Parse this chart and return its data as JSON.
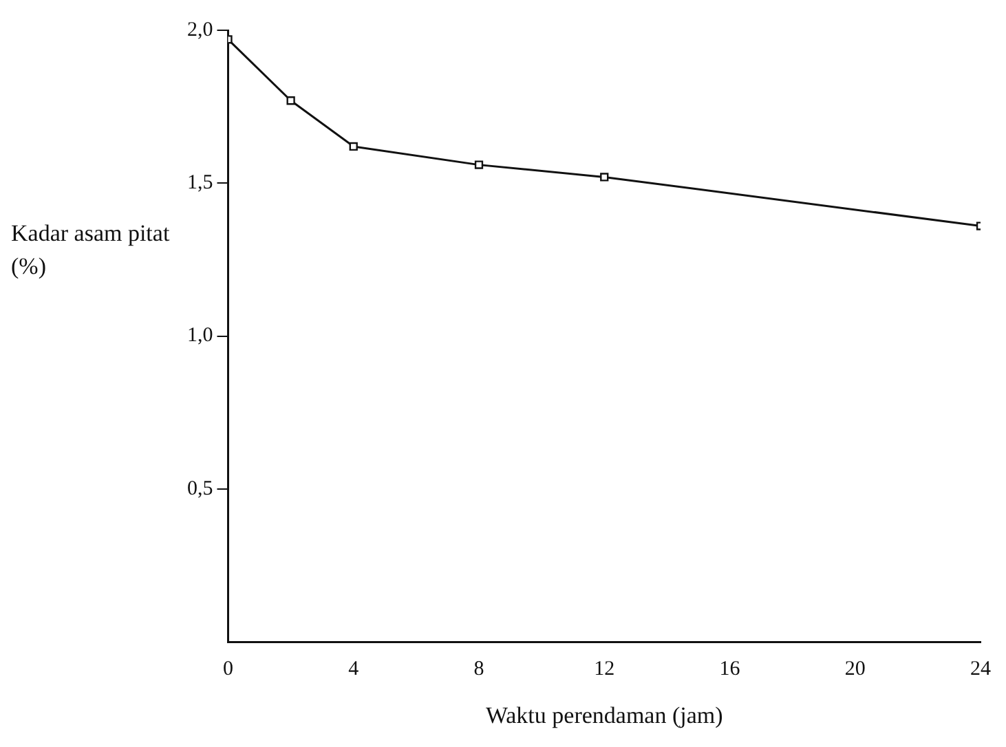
{
  "chart_data": {
    "type": "line",
    "xlabel": "Waktu perendaman (jam)",
    "ylabel": "Kadar asam pitat (%)",
    "x": [
      0,
      2,
      4,
      8,
      12,
      24
    ],
    "series": [
      {
        "color": "#111111",
        "values": [
          1.97,
          1.77,
          1.62,
          1.56,
          1.52,
          1.36
        ]
      }
    ],
    "xlim": [
      0,
      24
    ],
    "xticks": [
      0,
      4,
      8,
      12,
      16,
      20,
      24
    ],
    "ylim": [
      0,
      2
    ],
    "yticks": [
      {
        "value": 0.5,
        "label": "0,5"
      },
      {
        "value": 1,
        "label": "1,0"
      },
      {
        "value": 1.5,
        "label": "1,5"
      },
      {
        "value": 2,
        "label": "2,0"
      }
    ],
    "grid": false,
    "legend": false,
    "marker": "square",
    "line_style": "solid"
  }
}
